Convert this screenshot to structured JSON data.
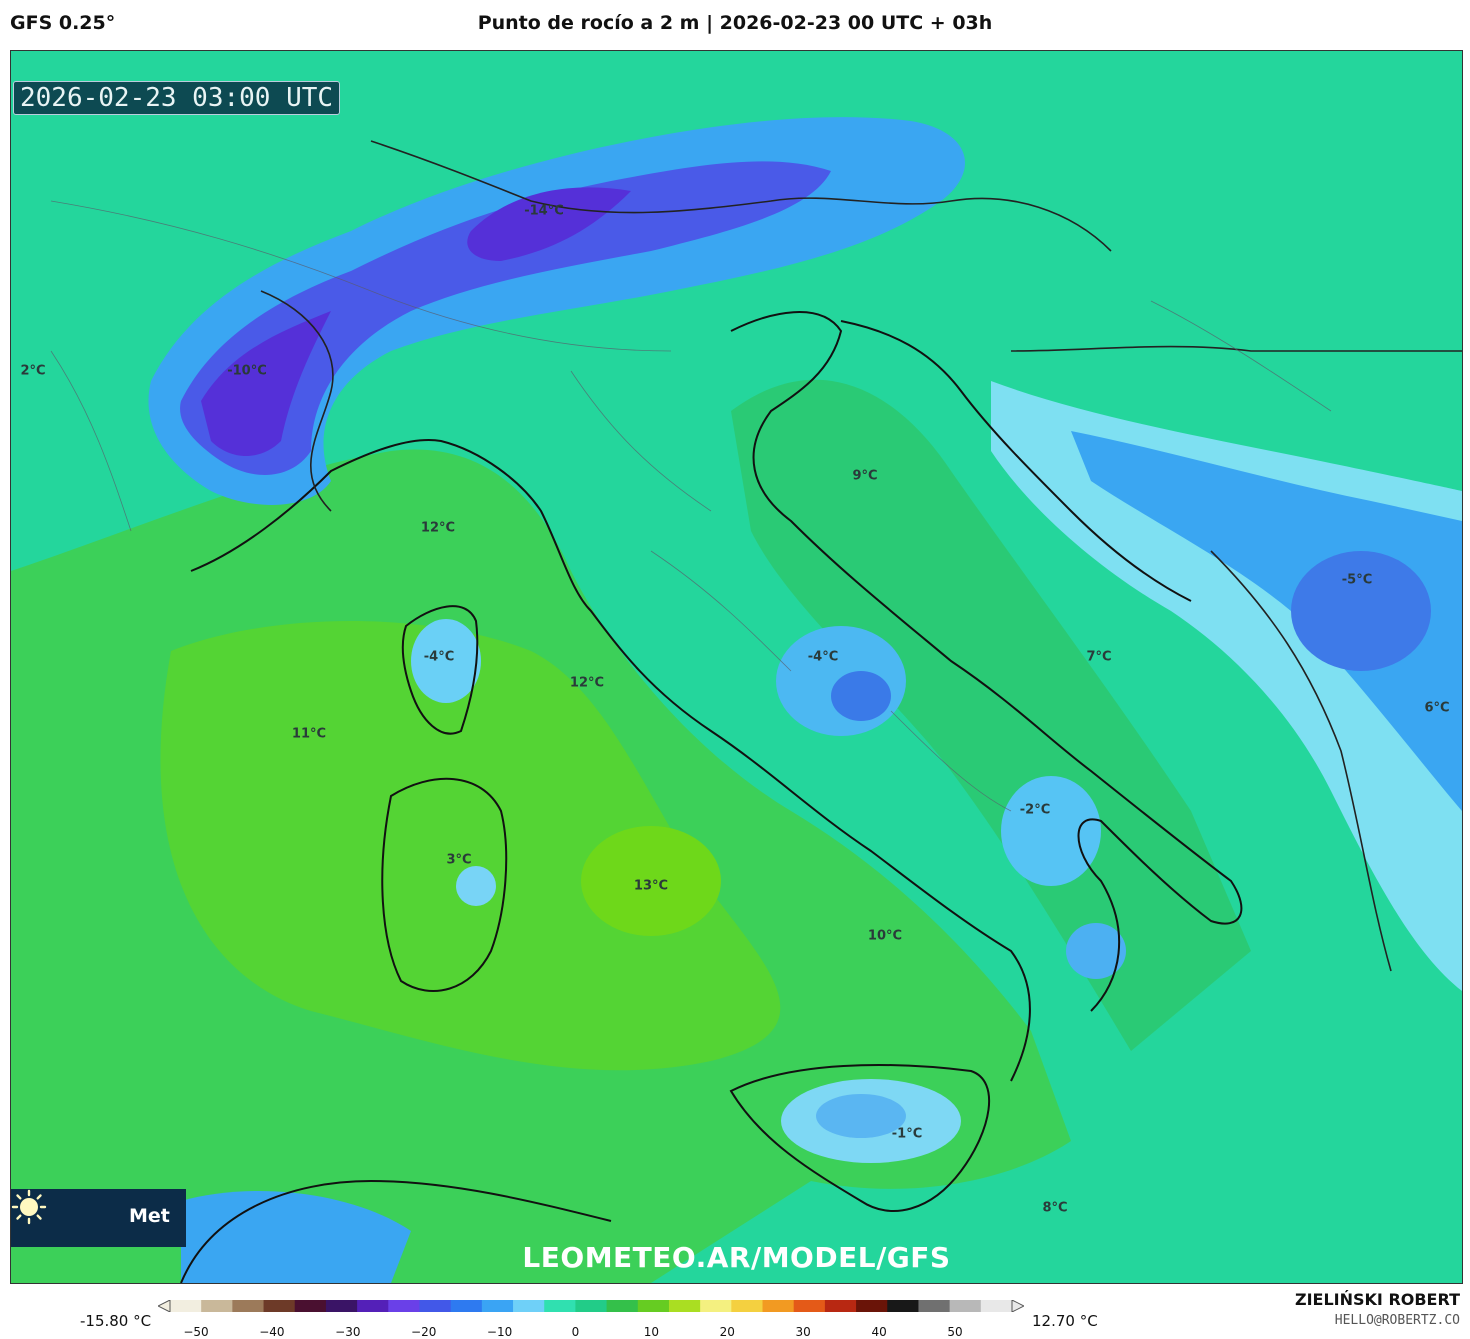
{
  "header": {
    "model": "GFS 0.25°",
    "title": "Punto de rocío a 2 m | 2026-02-23 00 UTC + 03h"
  },
  "map": {
    "valid_time": "2026-02-23 03:00 UTC",
    "watermark": "LEOMETEO.AR/MODEL/GFS",
    "logo_text": "Met",
    "temperature_labels": [
      {
        "id": "alps-east",
        "text": "-14°C"
      },
      {
        "id": "alps-west",
        "text": "-10°C"
      },
      {
        "id": "france",
        "text": "2°C"
      },
      {
        "id": "ligurian",
        "text": "12°C"
      },
      {
        "id": "adriatic-north",
        "text": "9°C"
      },
      {
        "id": "corsica",
        "text": "-4°C"
      },
      {
        "id": "tyrrhenian-north",
        "text": "12°C"
      },
      {
        "id": "apennines",
        "text": "-4°C"
      },
      {
        "id": "adriatic-south",
        "text": "7°C"
      },
      {
        "id": "balkans",
        "text": "-5°C"
      },
      {
        "id": "albania",
        "text": "6°C"
      },
      {
        "id": "balearic-east",
        "text": "11°C"
      },
      {
        "id": "basilicata",
        "text": "-2°C"
      },
      {
        "id": "sardinia",
        "text": "3°C"
      },
      {
        "id": "tyrrhenian",
        "text": "13°C"
      },
      {
        "id": "calabria-sea",
        "text": "10°C"
      },
      {
        "id": "sicily",
        "text": "-1°C"
      },
      {
        "id": "ionian",
        "text": "8°C"
      }
    ]
  },
  "colorbar": {
    "min_label": "-15.80 °C",
    "max_label": "12.70 °C",
    "ticks": [
      "−50",
      "−40",
      "−30",
      "−20",
      "−10",
      "0",
      "10",
      "20",
      "30",
      "40",
      "50"
    ],
    "colors": [
      "#f2eee0",
      "#c9b89a",
      "#9c7a5a",
      "#6d3a28",
      "#4a1030",
      "#3a1466",
      "#5420b8",
      "#6a40e8",
      "#4258e8",
      "#2e7af0",
      "#3aa4f4",
      "#6fd0f8",
      "#30e0b0",
      "#22cc88",
      "#34c04a",
      "#66cc22",
      "#aade22",
      "#f4f080",
      "#f4d040",
      "#f29a22",
      "#e45a18",
      "#b82812",
      "#6a1408",
      "#181818",
      "#707070",
      "#b8b8b8",
      "#e8e8e8"
    ]
  },
  "credits": {
    "author": "ZIELIŃSKI ROBERT",
    "email": "HELLO@ROBERTZ.CO"
  }
}
